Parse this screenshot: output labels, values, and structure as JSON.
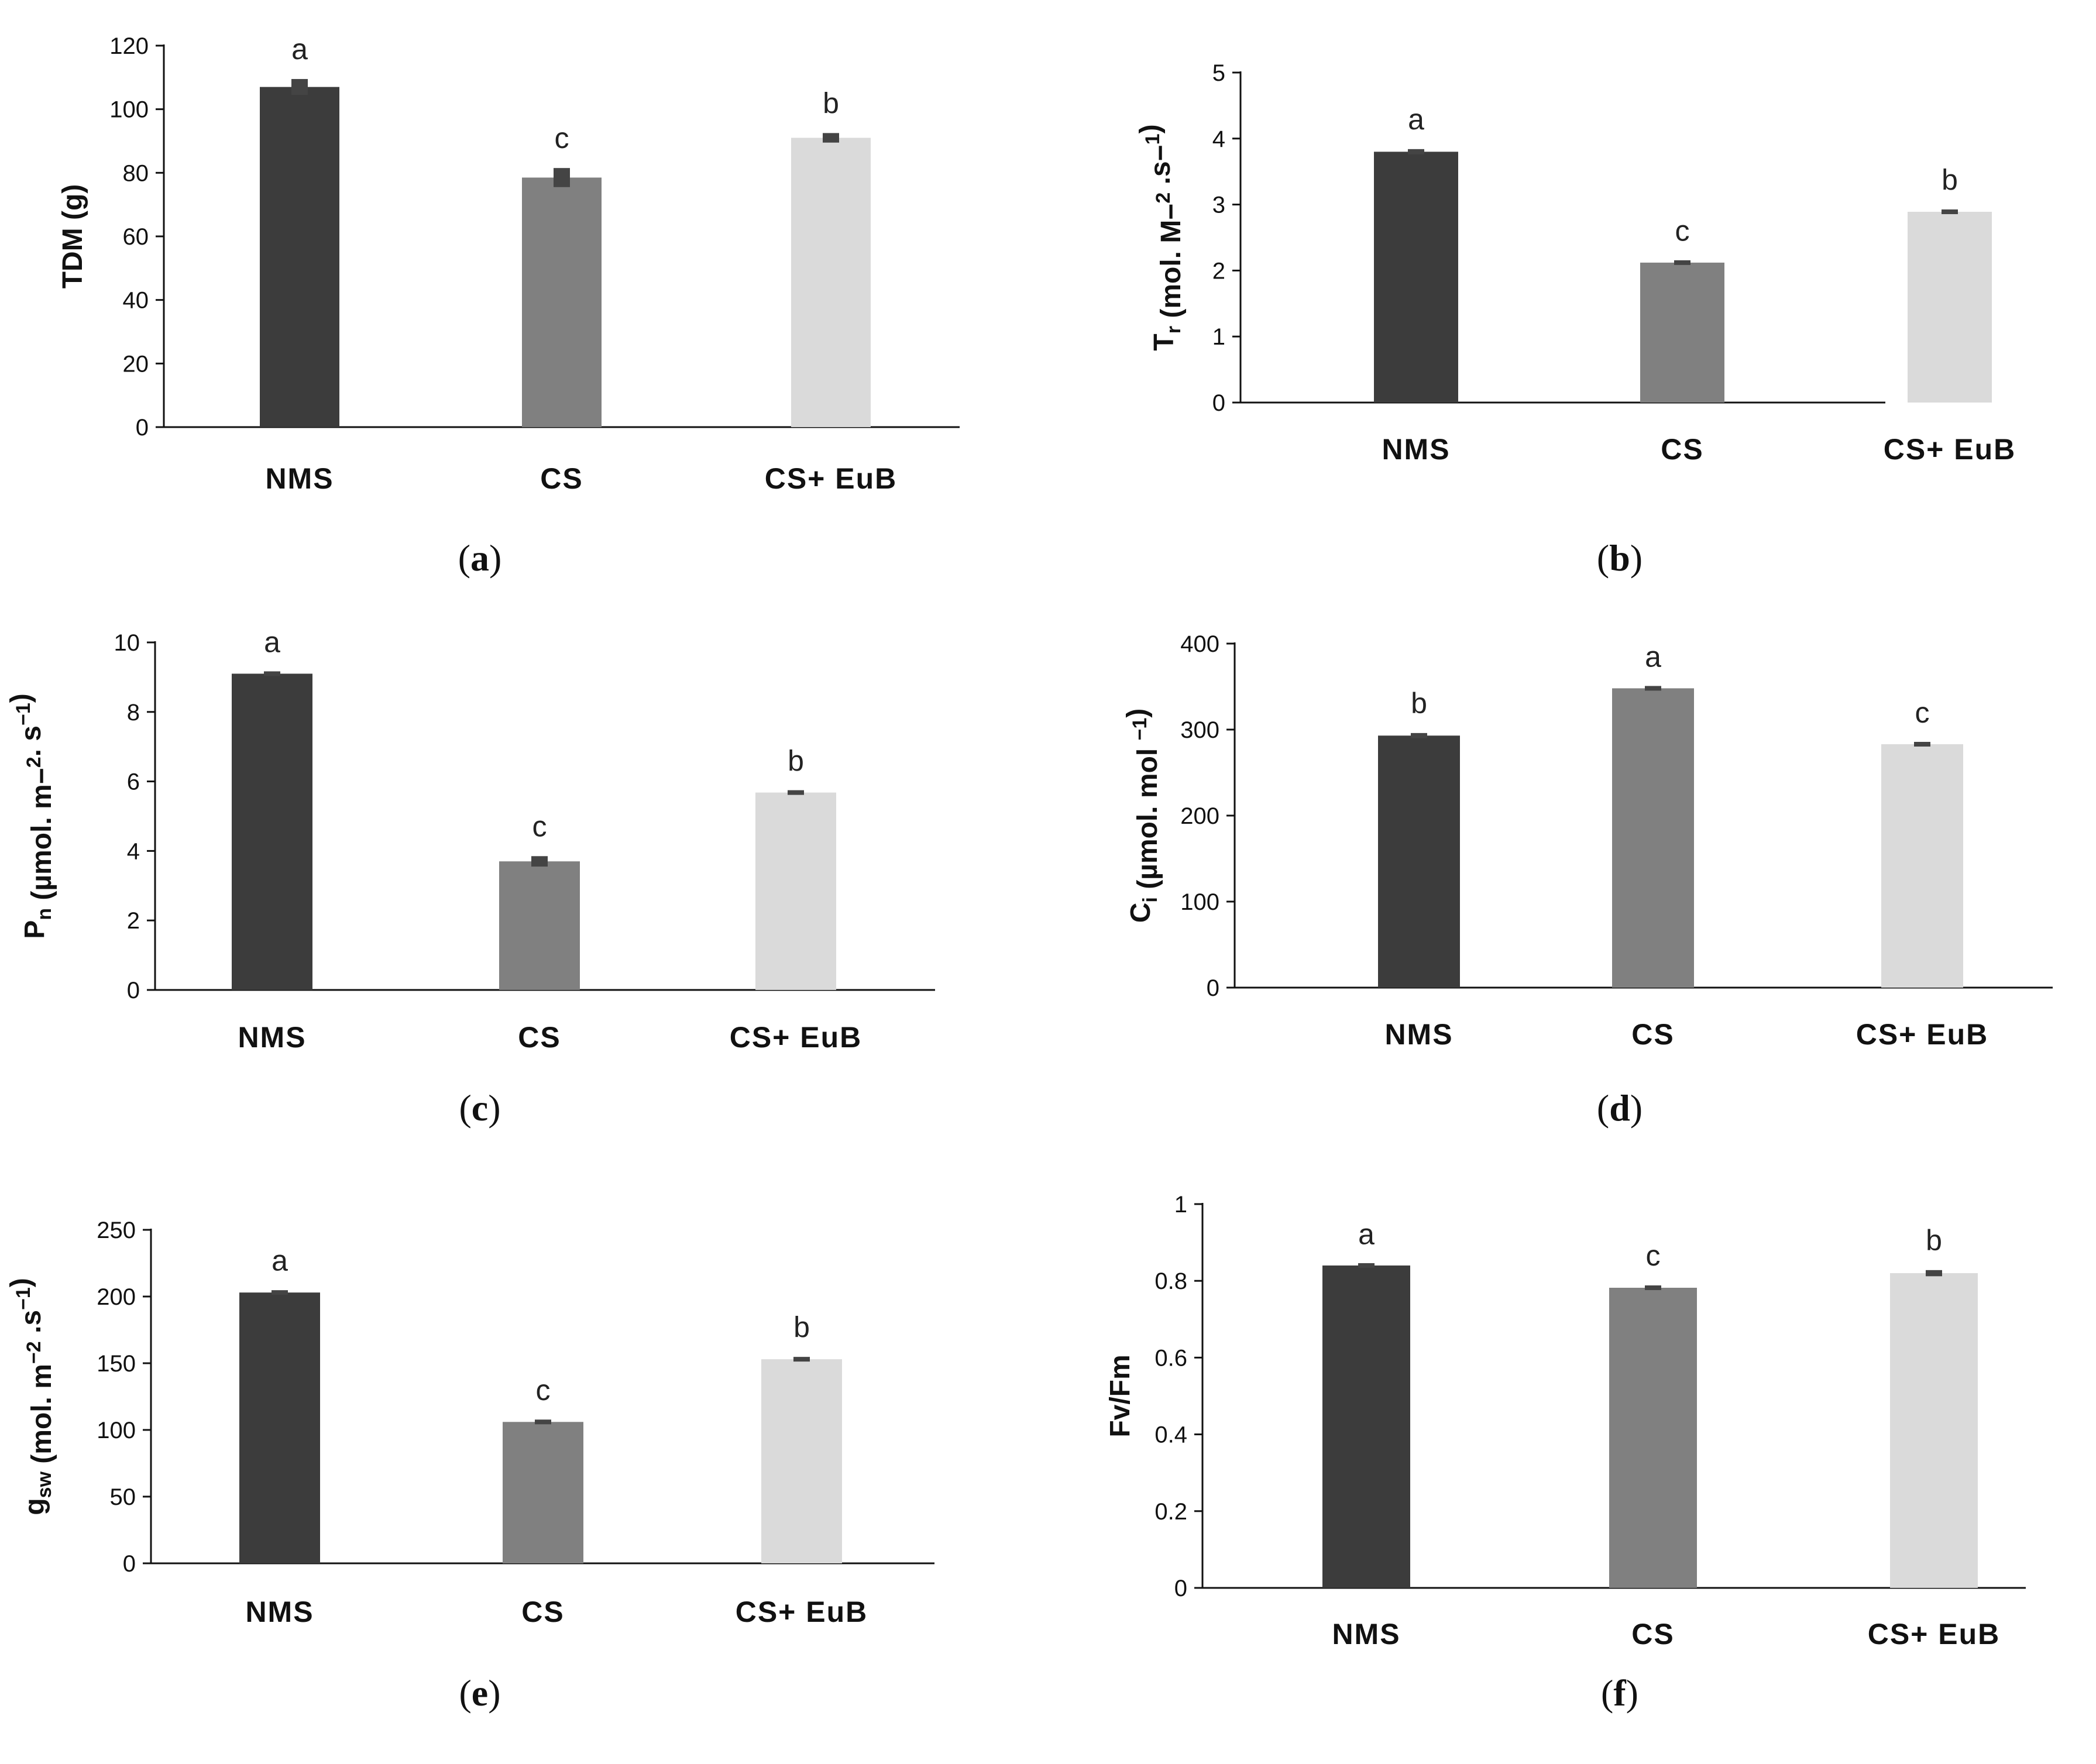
{
  "figure": {
    "categories": [
      "NMS",
      "CS",
      "CS+ EuB"
    ],
    "bar_colors": [
      "#3c3c3c",
      "#808080",
      "#dadada"
    ],
    "error_color": "#444444"
  },
  "chart_data": [
    {
      "id": "a",
      "type": "bar",
      "panel_label": "a",
      "ylabel_parts": [
        {
          "t": "TDM (g)"
        }
      ],
      "categories": [
        "NMS",
        "CS",
        "CS+ EuB"
      ],
      "values": [
        107,
        78.5,
        91
      ],
      "errors": [
        2.5,
        3,
        1.5
      ],
      "significance": [
        "a",
        "c",
        "b"
      ],
      "ylim": [
        0,
        120
      ],
      "yticks": [
        0,
        20,
        40,
        60,
        80,
        100,
        120
      ],
      "ytick_labels": [
        "0",
        "20",
        "40",
        "60",
        "80",
        "100",
        "120"
      ]
    },
    {
      "id": "b",
      "type": "bar",
      "panel_label": "b",
      "ylabel_parts": [
        {
          "t": "T"
        },
        {
          "t": "r",
          "sub": true
        },
        {
          "t": " (mol. M−"
        },
        {
          "t": "2",
          "sup": true
        },
        {
          "t": " .s−"
        },
        {
          "t": "1",
          "sup": true
        },
        {
          "t": ")"
        }
      ],
      "categories": [
        "NMS",
        "CS",
        "CS+ EuB"
      ],
      "values": [
        3.8,
        2.12,
        2.89
      ],
      "errors": [
        0.04,
        0.03,
        0.03
      ],
      "significance": [
        "a",
        "c",
        "b"
      ],
      "ylim": [
        0,
        5
      ],
      "yticks": [
        0,
        1,
        2,
        3,
        4,
        5
      ],
      "ytick_labels": [
        "0",
        "1",
        "2",
        "3",
        "4",
        "5"
      ]
    },
    {
      "id": "c",
      "type": "bar",
      "panel_label": "c",
      "ylabel_parts": [
        {
          "t": "P"
        },
        {
          "t": "n",
          "sub": true
        },
        {
          "t": " (µmol. m−"
        },
        {
          "t": "2",
          "sup": true
        },
        {
          "t": ". s"
        },
        {
          "t": "−1",
          "sup": true
        },
        {
          "t": ")"
        }
      ],
      "categories": [
        "NMS",
        "CS",
        "CS+ EuB"
      ],
      "values": [
        9.1,
        3.7,
        5.68
      ],
      "errors": [
        0.05,
        0.15,
        0.05
      ],
      "significance": [
        "a",
        "c",
        "b"
      ],
      "ylim": [
        0,
        10
      ],
      "yticks": [
        0,
        2,
        4,
        6,
        8,
        10
      ],
      "ytick_labels": [
        "0",
        "2",
        "4",
        "6",
        "8",
        "10"
      ]
    },
    {
      "id": "d",
      "type": "bar",
      "panel_label": "d",
      "ylabel_parts": [
        {
          "t": "C"
        },
        {
          "t": "i",
          "sub": true
        },
        {
          "t": " (µmol. mol "
        },
        {
          "t": "−1",
          "sup": true
        },
        {
          "t": ")"
        }
      ],
      "categories": [
        "NMS",
        "CS",
        "CS+ EuB"
      ],
      "values": [
        293,
        348,
        283
      ],
      "errors": [
        3,
        2,
        2
      ],
      "significance": [
        "b",
        "a",
        "c"
      ],
      "ylim": [
        0,
        400
      ],
      "yticks": [
        0,
        100,
        200,
        300,
        400
      ],
      "ytick_labels": [
        "0",
        "100",
        "200",
        "300",
        "400"
      ]
    },
    {
      "id": "e",
      "type": "bar",
      "panel_label": "e",
      "ylabel_parts": [
        {
          "t": "g"
        },
        {
          "t": "sw",
          "sub": true
        },
        {
          "t": " (mol. m"
        },
        {
          "t": "−2",
          "sup": true
        },
        {
          "t": " .s"
        },
        {
          "t": "−1",
          "sup": true
        },
        {
          "t": ")"
        }
      ],
      "categories": [
        "NMS",
        "CS",
        "CS+ EuB"
      ],
      "values": [
        203,
        106,
        153
      ],
      "errors": [
        1.5,
        1.5,
        1.5
      ],
      "significance": [
        "a",
        "c",
        "b"
      ],
      "ylim": [
        0,
        250
      ],
      "yticks": [
        0,
        50,
        100,
        150,
        200,
        250
      ],
      "ytick_labels": [
        "0",
        "50",
        "100",
        "150",
        "200",
        "250"
      ]
    },
    {
      "id": "f",
      "type": "bar",
      "panel_label": "f",
      "ylabel_parts": [
        {
          "t": "Fv/Fm"
        }
      ],
      "categories": [
        "NMS",
        "CS",
        "CS+ EuB"
      ],
      "values": [
        0.84,
        0.782,
        0.82
      ],
      "errors": [
        0.004,
        0.006,
        0.008
      ],
      "significance": [
        "a",
        "c",
        "b"
      ],
      "ylim": [
        0,
        1
      ],
      "yticks": [
        0,
        0.2,
        0.4,
        0.6,
        0.8,
        1
      ],
      "ytick_labels": [
        "0",
        "0.2",
        "0.4",
        "0.6",
        "0.8",
        "1"
      ]
    }
  ]
}
